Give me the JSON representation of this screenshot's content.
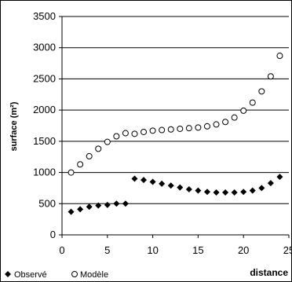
{
  "chart_data": {
    "type": "scatter",
    "xlabel": "distance",
    "ylabel": "surface (m²)",
    "xlim": [
      0,
      25
    ],
    "ylim": [
      0,
      3500
    ],
    "x_ticks": [
      "0",
      "5",
      "10",
      "15",
      "20",
      "25"
    ],
    "y_ticks": [
      "0",
      "500",
      "1000",
      "1500",
      "2000",
      "2500",
      "3000",
      "3500"
    ],
    "grid": "horizontal",
    "legend_position": "bottom-left",
    "series": [
      {
        "name": "Observé",
        "marker": "filled-diamond",
        "color": "#000000",
        "x": [
          1,
          2,
          3,
          4,
          5,
          6,
          7,
          8,
          9,
          10,
          11,
          12,
          13,
          14,
          15,
          16,
          17,
          18,
          19,
          20,
          21,
          22,
          23,
          24
        ],
        "y": [
          370,
          410,
          450,
          470,
          480,
          500,
          500,
          900,
          880,
          850,
          820,
          790,
          760,
          730,
          710,
          690,
          680,
          680,
          680,
          690,
          710,
          750,
          830,
          930
        ]
      },
      {
        "name": "Modèle",
        "marker": "open-circle",
        "color": "#000000",
        "x": [
          1,
          2,
          3,
          4,
          5,
          6,
          7,
          8,
          9,
          10,
          11,
          12,
          13,
          14,
          15,
          16,
          17,
          18,
          19,
          20,
          21,
          22,
          23,
          24
        ],
        "y": [
          1000,
          1130,
          1260,
          1380,
          1490,
          1580,
          1630,
          1620,
          1650,
          1670,
          1680,
          1690,
          1700,
          1710,
          1720,
          1740,
          1770,
          1810,
          1880,
          1990,
          2120,
          2300,
          2540,
          2870
        ]
      }
    ]
  }
}
